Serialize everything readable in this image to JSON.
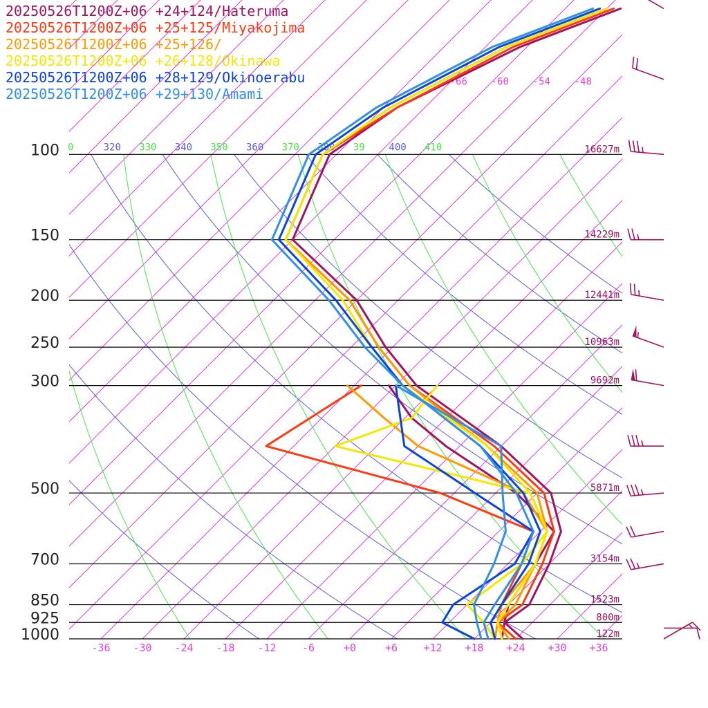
{
  "legend": [
    {
      "label": "20250526T1200Z+06 +24+124/Hateruma",
      "color": "#a0135e"
    },
    {
      "label": "20250526T1200Z+06 +25+125/Miyakojima",
      "color": "#ff3a10"
    },
    {
      "label": "20250526T1200Z+06 +25+126/",
      "color": "#ff9a00"
    },
    {
      "label": "20250526T1200Z+06 +26+128/Okinawa",
      "color": "#f5e800"
    },
    {
      "label": "20250526T1200Z+06 +28+129/Okinoerabu",
      "color": "#0a44d8"
    },
    {
      "label": "20250526T1200Z+06 +29+130/Amami",
      "color": "#3090e8"
    }
  ],
  "colors": {
    "isotherm": "#e040e0",
    "theta": "#5a5ae8",
    "theta_e": "#44e844",
    "isobar": "#000000",
    "height_label": "#a0135e",
    "wind_barb": "#a0135e"
  },
  "pressure_labels": [
    "100",
    "150",
    "200",
    "250",
    "300",
    "500",
    "700",
    "850",
    "925",
    "1000"
  ],
  "height_labels": [
    {
      "p": 100,
      "text": "16627m"
    },
    {
      "p": 150,
      "text": "14229m"
    },
    {
      "p": 200,
      "text": "12441m"
    },
    {
      "p": 250,
      "text": "10963m"
    },
    {
      "p": 300,
      "text": "9692m"
    },
    {
      "p": 500,
      "text": "5871m"
    },
    {
      "p": 700,
      "text": "3154m"
    },
    {
      "p": 850,
      "text": "1523m"
    },
    {
      "p": 925,
      "text": "800m"
    },
    {
      "p": 1000,
      "text": "122m"
    }
  ],
  "x_tick_labels": [
    "-36",
    "-30",
    "-24",
    "-18",
    "-12",
    "-6",
    "+0",
    "+6",
    "+12",
    "+18",
    "+24",
    "+30",
    "+36"
  ],
  "upper_isotherm_labels": [
    "-66",
    "-60",
    "-54",
    "-48"
  ],
  "theta_labels": [
    {
      "text": "0",
      "kind": "theta_e"
    },
    {
      "text": "320",
      "kind": "theta"
    },
    {
      "text": "330",
      "kind": "theta_e"
    },
    {
      "text": "340",
      "kind": "theta"
    },
    {
      "text": "350",
      "kind": "theta_e"
    },
    {
      "text": "360",
      "kind": "theta"
    },
    {
      "text": "370",
      "kind": "theta_e"
    },
    {
      "text": "380",
      "kind": "theta"
    },
    {
      "text": "39",
      "kind": "theta_e"
    },
    {
      "text": "400",
      "kind": "theta"
    },
    {
      "text": "410",
      "kind": "theta_e"
    }
  ],
  "chart_data": {
    "type": "line",
    "subtype": "skew-T log-p diagram",
    "x_axis_unit": "temperature (°C)",
    "y_axis_unit": "pressure (hPa, log scale)",
    "xlim": [
      -40,
      40
    ],
    "ylim": [
      1000,
      100
    ],
    "isobars": [
      100,
      150,
      200,
      250,
      300,
      500,
      700,
      850,
      925,
      1000
    ],
    "series": [
      {
        "name": "20250526T1200Z+06 +24+124/Hateruma",
        "color": "#a0135e",
        "temperature": [
          [
            1000,
            25
          ],
          [
            925,
            20
          ],
          [
            850,
            21
          ],
          [
            700,
            18
          ],
          [
            600,
            15
          ],
          [
            500,
            8
          ],
          [
            400,
            -6
          ],
          [
            300,
            -27
          ],
          [
            250,
            -37
          ],
          [
            200,
            -48
          ],
          [
            150,
            -66
          ],
          [
            100,
            -73
          ],
          [
            80,
            -70
          ],
          [
            60,
            -61
          ],
          [
            50,
            -52
          ]
        ],
        "dewpoint": [
          [
            1000,
            22
          ],
          [
            925,
            20
          ],
          [
            850,
            18
          ],
          [
            700,
            16
          ],
          [
            600,
            14
          ],
          [
            500,
            3
          ],
          [
            400,
            -14
          ],
          [
            350,
            -23
          ],
          [
            300,
            -31
          ]
        ]
      },
      {
        "name": "20250526T1200Z+06 +25+125/Miyakojima",
        "color": "#ff3a10",
        "temperature": [
          [
            1000,
            24
          ],
          [
            925,
            19
          ],
          [
            850,
            20
          ],
          [
            700,
            17
          ],
          [
            600,
            14
          ],
          [
            500,
            7
          ],
          [
            400,
            -7
          ],
          [
            300,
            -28
          ],
          [
            250,
            -38
          ],
          [
            200,
            -49
          ],
          [
            150,
            -67
          ],
          [
            100,
            -74
          ],
          [
            80,
            -70
          ],
          [
            60,
            -62
          ],
          [
            50,
            -53
          ]
        ],
        "dewpoint": [
          [
            1000,
            22
          ],
          [
            925,
            19
          ],
          [
            850,
            17
          ],
          [
            700,
            14
          ],
          [
            600,
            11
          ],
          [
            500,
            -8
          ],
          [
            400,
            -40
          ],
          [
            300,
            -35
          ]
        ]
      },
      {
        "name": "20250526T1200Z+06 +25+126/",
        "color": "#ff9a00",
        "temperature": [
          [
            1000,
            23
          ],
          [
            925,
            19
          ],
          [
            850,
            19
          ],
          [
            700,
            16
          ],
          [
            600,
            13
          ],
          [
            500,
            6
          ],
          [
            400,
            -8
          ],
          [
            300,
            -28
          ],
          [
            250,
            -38
          ],
          [
            200,
            -49
          ],
          [
            150,
            -67
          ],
          [
            100,
            -74
          ],
          [
            80,
            -71
          ],
          [
            60,
            -63
          ],
          [
            50,
            -54
          ]
        ],
        "dewpoint": [
          [
            1000,
            21
          ],
          [
            925,
            19
          ],
          [
            850,
            17
          ],
          [
            700,
            16
          ],
          [
            600,
            13
          ],
          [
            500,
            4
          ],
          [
            400,
            -18
          ],
          [
            350,
            -27
          ],
          [
            300,
            -37
          ]
        ]
      },
      {
        "name": "20250526T1200Z+06 +26+128/Okinawa",
        "color": "#f5e800",
        "temperature": [
          [
            1000,
            22
          ],
          [
            925,
            19
          ],
          [
            850,
            18
          ],
          [
            700,
            16
          ],
          [
            600,
            13
          ],
          [
            500,
            5
          ],
          [
            400,
            -8
          ],
          [
            300,
            -29
          ],
          [
            250,
            -39
          ],
          [
            200,
            -50
          ],
          [
            150,
            -67
          ],
          [
            100,
            -74
          ],
          [
            80,
            -71
          ],
          [
            60,
            -63
          ],
          [
            50,
            -54
          ]
        ],
        "dewpoint": [
          [
            1000,
            21
          ],
          [
            925,
            17
          ],
          [
            850,
            12
          ],
          [
            700,
            14
          ],
          [
            600,
            13
          ],
          [
            500,
            5
          ],
          [
            400,
            -30
          ],
          [
            350,
            -23
          ],
          [
            300,
            -24
          ]
        ]
      },
      {
        "name": "20250526T1200Z+06 +28+129/Okinoerabu",
        "color": "#0a44d8",
        "temperature": [
          [
            1000,
            21
          ],
          [
            925,
            18
          ],
          [
            850,
            17
          ],
          [
            700,
            15
          ],
          [
            600,
            12
          ],
          [
            500,
            4
          ],
          [
            400,
            -9
          ],
          [
            300,
            -29
          ],
          [
            250,
            -39
          ],
          [
            200,
            -51
          ],
          [
            150,
            -68
          ],
          [
            100,
            -75
          ],
          [
            80,
            -72
          ],
          [
            60,
            -64
          ],
          [
            50,
            -55
          ]
        ],
        "dewpoint": [
          [
            1000,
            18
          ],
          [
            925,
            11
          ],
          [
            850,
            10
          ],
          [
            700,
            13
          ],
          [
            600,
            11
          ],
          [
            500,
            -3
          ],
          [
            400,
            -20
          ],
          [
            300,
            -30
          ]
        ]
      },
      {
        "name": "20250526T1200Z+06 +29+130/Amami",
        "color": "#3090e8",
        "temperature": [
          [
            1000,
            20
          ],
          [
            925,
            17
          ],
          [
            850,
            16
          ],
          [
            700,
            14
          ],
          [
            600,
            11
          ],
          [
            500,
            3
          ],
          [
            400,
            -9
          ],
          [
            300,
            -29
          ],
          [
            250,
            -40
          ],
          [
            200,
            -52
          ],
          [
            150,
            -69
          ],
          [
            100,
            -76
          ],
          [
            80,
            -73
          ],
          [
            60,
            -65
          ],
          [
            50,
            -56
          ]
        ],
        "dewpoint": [
          [
            1000,
            19
          ],
          [
            925,
            16
          ],
          [
            850,
            13
          ],
          [
            700,
            10
          ],
          [
            600,
            7
          ],
          [
            500,
            1
          ],
          [
            400,
            -6
          ],
          [
            300,
            -30
          ]
        ]
      }
    ],
    "wind_barbs": [
      {
        "p": 1000,
        "speed_kt": 15,
        "direction_deg": 60
      },
      {
        "p": 950,
        "speed_kt": 10,
        "direction_deg": 90
      },
      {
        "p": 700,
        "speed_kt": 25,
        "direction_deg": 260
      },
      {
        "p": 600,
        "speed_kt": 20,
        "direction_deg": 260
      },
      {
        "p": 500,
        "speed_kt": 35,
        "direction_deg": 265
      },
      {
        "p": 400,
        "speed_kt": 35,
        "direction_deg": 270
      },
      {
        "p": 300,
        "speed_kt": 60,
        "direction_deg": 280
      },
      {
        "p": 250,
        "speed_kt": 55,
        "direction_deg": 290
      },
      {
        "p": 200,
        "speed_kt": 25,
        "direction_deg": 280
      },
      {
        "p": 150,
        "speed_kt": 25,
        "direction_deg": 270
      },
      {
        "p": 100,
        "speed_kt": 35,
        "direction_deg": 275
      },
      {
        "p": 70,
        "speed_kt": 20,
        "direction_deg": 290
      },
      {
        "p": 50,
        "speed_kt": 15,
        "direction_deg": 300
      }
    ]
  }
}
